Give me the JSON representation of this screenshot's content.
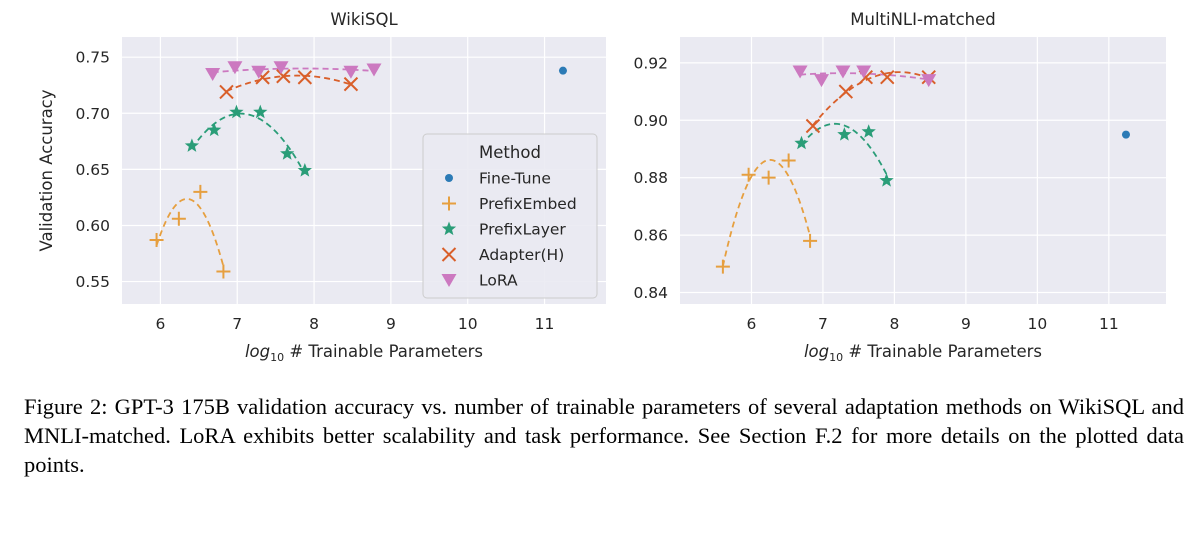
{
  "colors": {
    "axes_background": "#EAEAF2",
    "grid": "#FFFFFF",
    "Fine-Tune": "#2C7BB6",
    "PrefixEmbed": "#E69F3F",
    "PrefixLayer": "#2A9D78",
    "Adapter(H)": "#D95F2A",
    "LoRA": "#CC79C0"
  },
  "legend": {
    "title": "Method",
    "placement": "lower right of left panel",
    "items": [
      {
        "label": "Fine-Tune",
        "marker": "dot"
      },
      {
        "label": "PrefixEmbed",
        "marker": "plus"
      },
      {
        "label": "PrefixLayer",
        "marker": "star"
      },
      {
        "label": "Adapter(H)",
        "marker": "x"
      },
      {
        "label": "LoRA",
        "marker": "triangle-down"
      }
    ]
  },
  "chart_data": [
    {
      "type": "scatter",
      "title": "WikiSQL",
      "xlabel_main": "log",
      "xlabel_sub": "10",
      "xlabel_rest": " # Trainable Parameters",
      "ylabel": "Validation Accuracy",
      "xlim": [
        5.5,
        11.8
      ],
      "ylim": [
        0.53,
        0.768
      ],
      "xticks": [
        6,
        7,
        8,
        9,
        10,
        11
      ],
      "xtick_labels": [
        "6",
        "7",
        "8",
        "9",
        "10",
        "11"
      ],
      "yticks": [
        0.55,
        0.6,
        0.65,
        0.7,
        0.75
      ],
      "ytick_labels": [
        "0.55",
        "0.60",
        "0.65",
        "0.70",
        "0.75"
      ],
      "grid": true,
      "series": [
        {
          "name": "Fine-Tune",
          "marker": "dot",
          "fit": false,
          "x": [
            11.24
          ],
          "y": [
            0.738
          ]
        },
        {
          "name": "PrefixEmbed",
          "marker": "plus",
          "fit": true,
          "x": [
            5.95,
            6.24,
            6.52,
            6.82
          ],
          "y": [
            0.587,
            0.606,
            0.63,
            0.559
          ]
        },
        {
          "name": "PrefixLayer",
          "marker": "star",
          "fit": true,
          "x": [
            6.41,
            6.7,
            6.99,
            7.3,
            7.65,
            7.88
          ],
          "y": [
            0.671,
            0.685,
            0.701,
            0.701,
            0.664,
            0.649
          ]
        },
        {
          "name": "Adapter(H)",
          "marker": "x",
          "fit": true,
          "x": [
            6.86,
            7.33,
            7.6,
            7.88,
            8.48
          ],
          "y": [
            0.719,
            0.732,
            0.733,
            0.732,
            0.726
          ]
        },
        {
          "name": "LoRA",
          "marker": "triangle-down",
          "fit": true,
          "x": [
            6.68,
            6.97,
            7.28,
            7.57,
            8.48,
            8.78
          ],
          "y": [
            0.735,
            0.741,
            0.737,
            0.741,
            0.737,
            0.739
          ]
        }
      ]
    },
    {
      "type": "scatter",
      "title": "MultiNLI-matched",
      "xlabel_main": "log",
      "xlabel_sub": "10",
      "xlabel_rest": " # Trainable Parameters",
      "ylabel": "",
      "xlim": [
        5.0,
        11.8
      ],
      "ylim": [
        0.836,
        0.929
      ],
      "xticks": [
        6,
        7,
        8,
        9,
        10,
        11
      ],
      "xtick_labels": [
        "6",
        "7",
        "8",
        "9",
        "10",
        "11"
      ],
      "yticks": [
        0.84,
        0.86,
        0.88,
        0.9,
        0.92
      ],
      "ytick_labels": [
        "0.84",
        "0.86",
        "0.88",
        "0.90",
        "0.92"
      ],
      "grid": true,
      "series": [
        {
          "name": "Fine-Tune",
          "marker": "dot",
          "fit": false,
          "x": [
            11.24
          ],
          "y": [
            0.895
          ]
        },
        {
          "name": "PrefixEmbed",
          "marker": "plus",
          "fit": true,
          "x": [
            5.6,
            5.96,
            6.24,
            6.52,
            6.82
          ],
          "y": [
            0.849,
            0.881,
            0.88,
            0.886,
            0.858
          ]
        },
        {
          "name": "PrefixLayer",
          "marker": "star",
          "fit": true,
          "x": [
            6.7,
            7.3,
            7.64,
            7.89
          ],
          "y": [
            0.892,
            0.895,
            0.896,
            0.879
          ]
        },
        {
          "name": "Adapter(H)",
          "marker": "x",
          "fit": true,
          "x": [
            6.86,
            7.32,
            7.6,
            7.9,
            8.48
          ],
          "y": [
            0.898,
            0.91,
            0.915,
            0.915,
            0.915
          ]
        },
        {
          "name": "LoRA",
          "marker": "triangle-down",
          "fit": true,
          "x": [
            6.68,
            6.98,
            7.28,
            7.57,
            8.48
          ],
          "y": [
            0.917,
            0.914,
            0.917,
            0.917,
            0.914
          ]
        }
      ]
    }
  ],
  "caption": "Figure 2: GPT-3 175B validation accuracy vs. number of trainable parameters of several adaptation methods on WikiSQL and MNLI-matched. LoRA exhibits better scalability and task performance. See Section F.2 for more details on the plotted data points."
}
